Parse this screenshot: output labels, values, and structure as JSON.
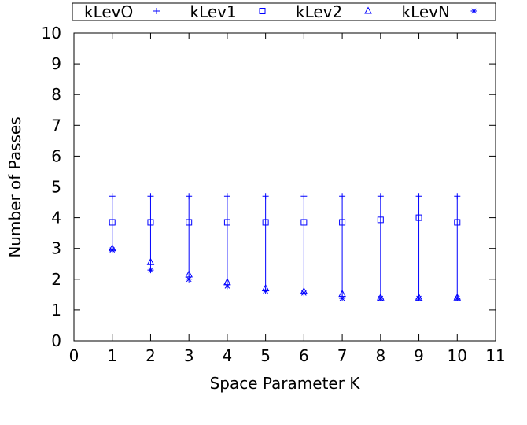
{
  "chart_data": {
    "type": "scatter",
    "xlabel": "Space Parameter K",
    "ylabel": "Number of Passes",
    "xlim": [
      0,
      11
    ],
    "ylim": [
      0,
      10
    ],
    "xticks": [
      "0",
      "1",
      "2",
      "3",
      "4",
      "5",
      "6",
      "7",
      "8",
      "9",
      "10",
      "11"
    ],
    "yticks": [
      "0",
      "1",
      "2",
      "3",
      "4",
      "5",
      "6",
      "7",
      "8",
      "9",
      "10"
    ],
    "grid": false,
    "legend_position": "top",
    "color": "#0000ff",
    "x": [
      1,
      2,
      3,
      4,
      5,
      6,
      7,
      8,
      9,
      10
    ],
    "series": [
      {
        "name": "kLevO",
        "marker": "plus",
        "values": [
          4.7,
          4.7,
          4.7,
          4.7,
          4.7,
          4.7,
          4.7,
          4.7,
          4.7,
          4.7
        ]
      },
      {
        "name": "kLev1",
        "marker": "square",
        "values": [
          3.85,
          3.85,
          3.85,
          3.85,
          3.85,
          3.85,
          3.85,
          3.93,
          4.0,
          3.85
        ]
      },
      {
        "name": "kLev2",
        "marker": "triangle",
        "values": [
          3.0,
          2.55,
          2.15,
          1.9,
          1.7,
          1.6,
          1.52,
          1.4,
          1.4,
          1.4
        ]
      },
      {
        "name": "kLevN",
        "marker": "asterisk",
        "values": [
          2.95,
          2.3,
          2.0,
          1.78,
          1.62,
          1.55,
          1.38,
          1.38,
          1.38,
          1.38
        ]
      }
    ]
  }
}
